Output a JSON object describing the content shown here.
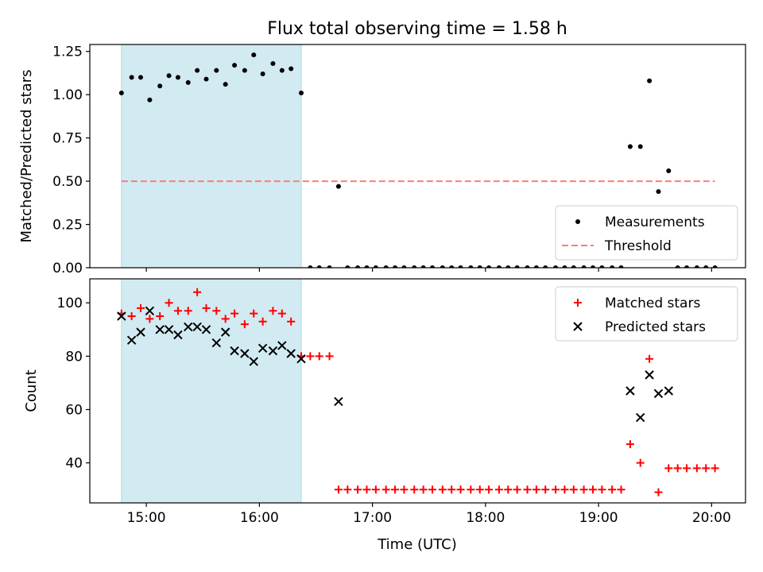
{
  "chart_data": [
    {
      "type": "scatter",
      "title": "Flux total observing time = 1.58 h",
      "xlabel": "",
      "ylabel": "Matched/Predicted stars",
      "xlim": [
        14.5,
        20.3
      ],
      "ylim": [
        0,
        1.29
      ],
      "xticks": [
        15,
        16,
        17,
        18,
        19,
        20
      ],
      "xtick_labels": [
        "15:00",
        "16:00",
        "17:00",
        "18:00",
        "19:00",
        "20:00"
      ],
      "yticks": [
        0,
        0.25,
        0.5,
        0.75,
        1.0,
        1.25
      ],
      "ytick_labels": [
        "0.00",
        "0.25",
        "0.50",
        "0.75",
        "1.00",
        "1.25"
      ],
      "shaded_interval": {
        "x": [
          14.78,
          16.37
        ],
        "color": "#add8e6"
      },
      "threshold": {
        "name": "Threshold",
        "y": 0.5,
        "x": [
          14.78,
          20.03
        ],
        "color": "#ff7b7b",
        "style": "dashed"
      },
      "series": [
        {
          "name": "Measurements",
          "marker": "dot",
          "color": "#000000",
          "x": [
            14.78,
            14.87,
            14.95,
            15.03,
            15.12,
            15.2,
            15.28,
            15.37,
            15.45,
            15.53,
            15.62,
            15.7,
            15.78,
            15.87,
            15.95,
            16.03,
            16.12,
            16.2,
            16.28,
            16.37,
            16.45,
            16.53,
            16.62,
            16.7,
            16.78,
            16.87,
            16.95,
            17.03,
            17.12,
            17.2,
            17.28,
            17.37,
            17.45,
            17.53,
            17.62,
            17.7,
            17.78,
            17.87,
            17.95,
            18.03,
            18.12,
            18.2,
            18.28,
            18.37,
            18.45,
            18.53,
            18.62,
            18.7,
            18.78,
            18.87,
            18.95,
            19.03,
            19.12,
            19.2,
            19.28,
            19.37,
            19.45,
            19.53,
            19.62,
            19.7,
            19.78,
            19.87,
            19.95,
            20.03
          ],
          "y": [
            1.01,
            1.1,
            1.1,
            0.97,
            1.05,
            1.11,
            1.1,
            1.07,
            1.14,
            1.09,
            1.14,
            1.06,
            1.17,
            1.14,
            1.23,
            1.12,
            1.18,
            1.14,
            1.15,
            1.01,
            0,
            0,
            0,
            0.47,
            0,
            0,
            0,
            0,
            0,
            0,
            0,
            0,
            0,
            0,
            0,
            0,
            0,
            0,
            0,
            0,
            0,
            0,
            0,
            0,
            0,
            0,
            0,
            0,
            0,
            0,
            0,
            0,
            0,
            0,
            0.7,
            0.7,
            1.08,
            0.44,
            0.56,
            0,
            0,
            0,
            0,
            0
          ]
        }
      ],
      "legend": {
        "position": "lower-right",
        "entries": [
          "Measurements",
          "Threshold"
        ]
      }
    },
    {
      "type": "scatter",
      "title": "",
      "xlabel": "Time (UTC)",
      "ylabel": "Count",
      "xlim": [
        14.5,
        20.3
      ],
      "ylim": [
        25,
        109
      ],
      "xticks": [
        15,
        16,
        17,
        18,
        19,
        20
      ],
      "xtick_labels": [
        "15:00",
        "16:00",
        "17:00",
        "18:00",
        "19:00",
        "20:00"
      ],
      "yticks": [
        40,
        60,
        80,
        100
      ],
      "ytick_labels": [
        "40",
        "60",
        "80",
        "100"
      ],
      "shaded_interval": {
        "x": [
          14.78,
          16.37
        ],
        "color": "#add8e6"
      },
      "series": [
        {
          "name": "Matched stars",
          "marker": "plus",
          "color": "#ff0000",
          "x": [
            14.78,
            14.87,
            14.95,
            15.03,
            15.12,
            15.2,
            15.28,
            15.37,
            15.45,
            15.53,
            15.62,
            15.7,
            15.78,
            15.87,
            15.95,
            16.03,
            16.12,
            16.2,
            16.28,
            16.37,
            16.45,
            16.53,
            16.62,
            16.7,
            16.78,
            16.87,
            16.95,
            17.03,
            17.12,
            17.2,
            17.28,
            17.37,
            17.45,
            17.53,
            17.62,
            17.7,
            17.78,
            17.87,
            17.95,
            18.03,
            18.12,
            18.2,
            18.28,
            18.37,
            18.45,
            18.53,
            18.62,
            18.7,
            18.78,
            18.87,
            18.95,
            19.03,
            19.12,
            19.2,
            19.28,
            19.37,
            19.45,
            19.53,
            19.62,
            19.7,
            19.78,
            19.87,
            19.95,
            20.03
          ],
          "y": [
            96,
            95,
            98,
            94,
            95,
            100,
            97,
            97,
            104,
            98,
            97,
            94,
            96,
            92,
            96,
            93,
            97,
            96,
            93,
            80,
            80,
            80,
            80,
            30,
            30,
            30,
            30,
            30,
            30,
            30,
            30,
            30,
            30,
            30,
            30,
            30,
            30,
            30,
            30,
            30,
            30,
            30,
            30,
            30,
            30,
            30,
            30,
            30,
            30,
            30,
            30,
            30,
            30,
            30,
            47,
            40,
            79,
            29,
            38,
            38,
            38,
            38,
            38,
            38
          ]
        },
        {
          "name": "Predicted stars",
          "marker": "x",
          "color": "#000000",
          "x": [
            14.78,
            14.87,
            14.95,
            15.03,
            15.12,
            15.2,
            15.28,
            15.37,
            15.45,
            15.53,
            15.62,
            15.7,
            15.78,
            15.87,
            15.95,
            16.03,
            16.12,
            16.2,
            16.28,
            16.37,
            16.7,
            19.28,
            19.37,
            19.45,
            19.53,
            19.62
          ],
          "y": [
            95,
            86,
            89,
            97,
            90,
            90,
            88,
            91,
            91,
            90,
            85,
            89,
            82,
            81,
            78,
            83,
            82,
            84,
            81,
            79,
            63,
            67,
            57,
            73,
            66,
            67
          ]
        }
      ],
      "legend": {
        "position": "upper-right",
        "entries": [
          "Matched stars",
          "Predicted stars"
        ]
      }
    }
  ]
}
